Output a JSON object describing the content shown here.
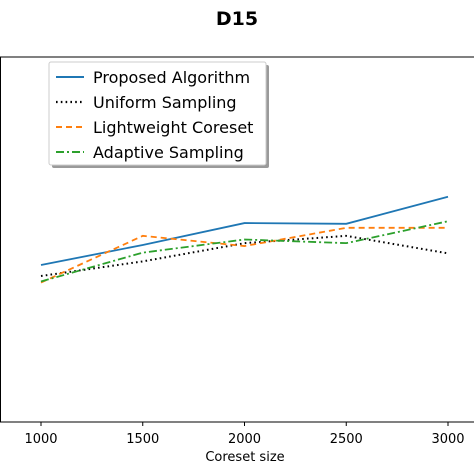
{
  "chart_data": {
    "type": "line",
    "title": "D15",
    "xlabel": "Coreset size",
    "ylabel": "",
    "x": [
      1000,
      1500,
      2000,
      2500,
      3000
    ],
    "x_ticks": [
      "1000",
      "1500",
      "2000",
      "2500",
      "3000"
    ],
    "xlim": [
      800,
      3000
    ],
    "ylim": [
      0,
      1
    ],
    "grid": false,
    "legend_position": "top-left",
    "series": [
      {
        "name": "Proposed Algorithm",
        "color": "#1f77b4",
        "style": "solid",
        "values": [
          0.43,
          0.485,
          0.545,
          0.543,
          0.617
        ]
      },
      {
        "name": "Uniform Sampling",
        "color": "#000000",
        "style": "dotted",
        "values": [
          0.4,
          0.44,
          0.49,
          0.51,
          0.462
        ]
      },
      {
        "name": "Lightweight Coreset",
        "color": "#ff7f0e",
        "style": "dashed",
        "values": [
          0.382,
          0.51,
          0.482,
          0.532,
          0.532
        ]
      },
      {
        "name": "Adaptive Sampling",
        "color": "#2ca02c",
        "style": "dashdot",
        "values": [
          0.385,
          0.464,
          0.5,
          0.49,
          0.55
        ]
      }
    ]
  }
}
